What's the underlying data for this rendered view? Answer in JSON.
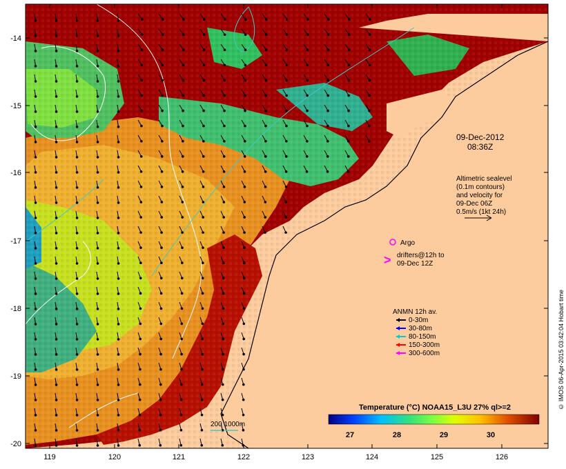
{
  "map": {
    "timestamp_date": "09-Dec-2012",
    "timestamp_time": "08:36Z",
    "altimetry_line1": "Altimetric sealevel",
    "altimetry_line2": "(0.1m contours)",
    "altimetry_line3": "and velocity for",
    "altimetry_line4": "09-Dec 06Z",
    "altimetry_line5": "0.5m/s (1kt 24h)",
    "argo_label": "Argo",
    "drifters_line1": "drifters@12h to",
    "drifters_line2": "09-Dec 12Z",
    "anmn_title": "ANMN 12h av.",
    "anmn_items": [
      {
        "label": "0-30m",
        "color": "#000000"
      },
      {
        "label": "30-80m",
        "color": "#0000ff"
      },
      {
        "label": "80-150m",
        "color": "#00cccc"
      },
      {
        "label": "150-300m",
        "color": "#ff0000"
      },
      {
        "label": "300-600m",
        "color": "#ff00ff"
      }
    ],
    "isobath_label": "200  1000m",
    "colorbar_title": "Temperature (°C) NOAA15_L3U 27% ql>=2",
    "colorbar_ticks": [
      "27",
      "28",
      "29",
      "30"
    ],
    "credit": "© IMOS 06-Apr-2015 03:42:04 Hobart time",
    "lon_ticks": [
      "119",
      "120",
      "121",
      "122",
      "123",
      "124",
      "125",
      "126"
    ],
    "lat_ticks": [
      "-14",
      "-15",
      "-16",
      "-17",
      "-18",
      "-19",
      "-20"
    ],
    "land_color": "#fdcc9e",
    "argo_color": "#ff00ff"
  }
}
